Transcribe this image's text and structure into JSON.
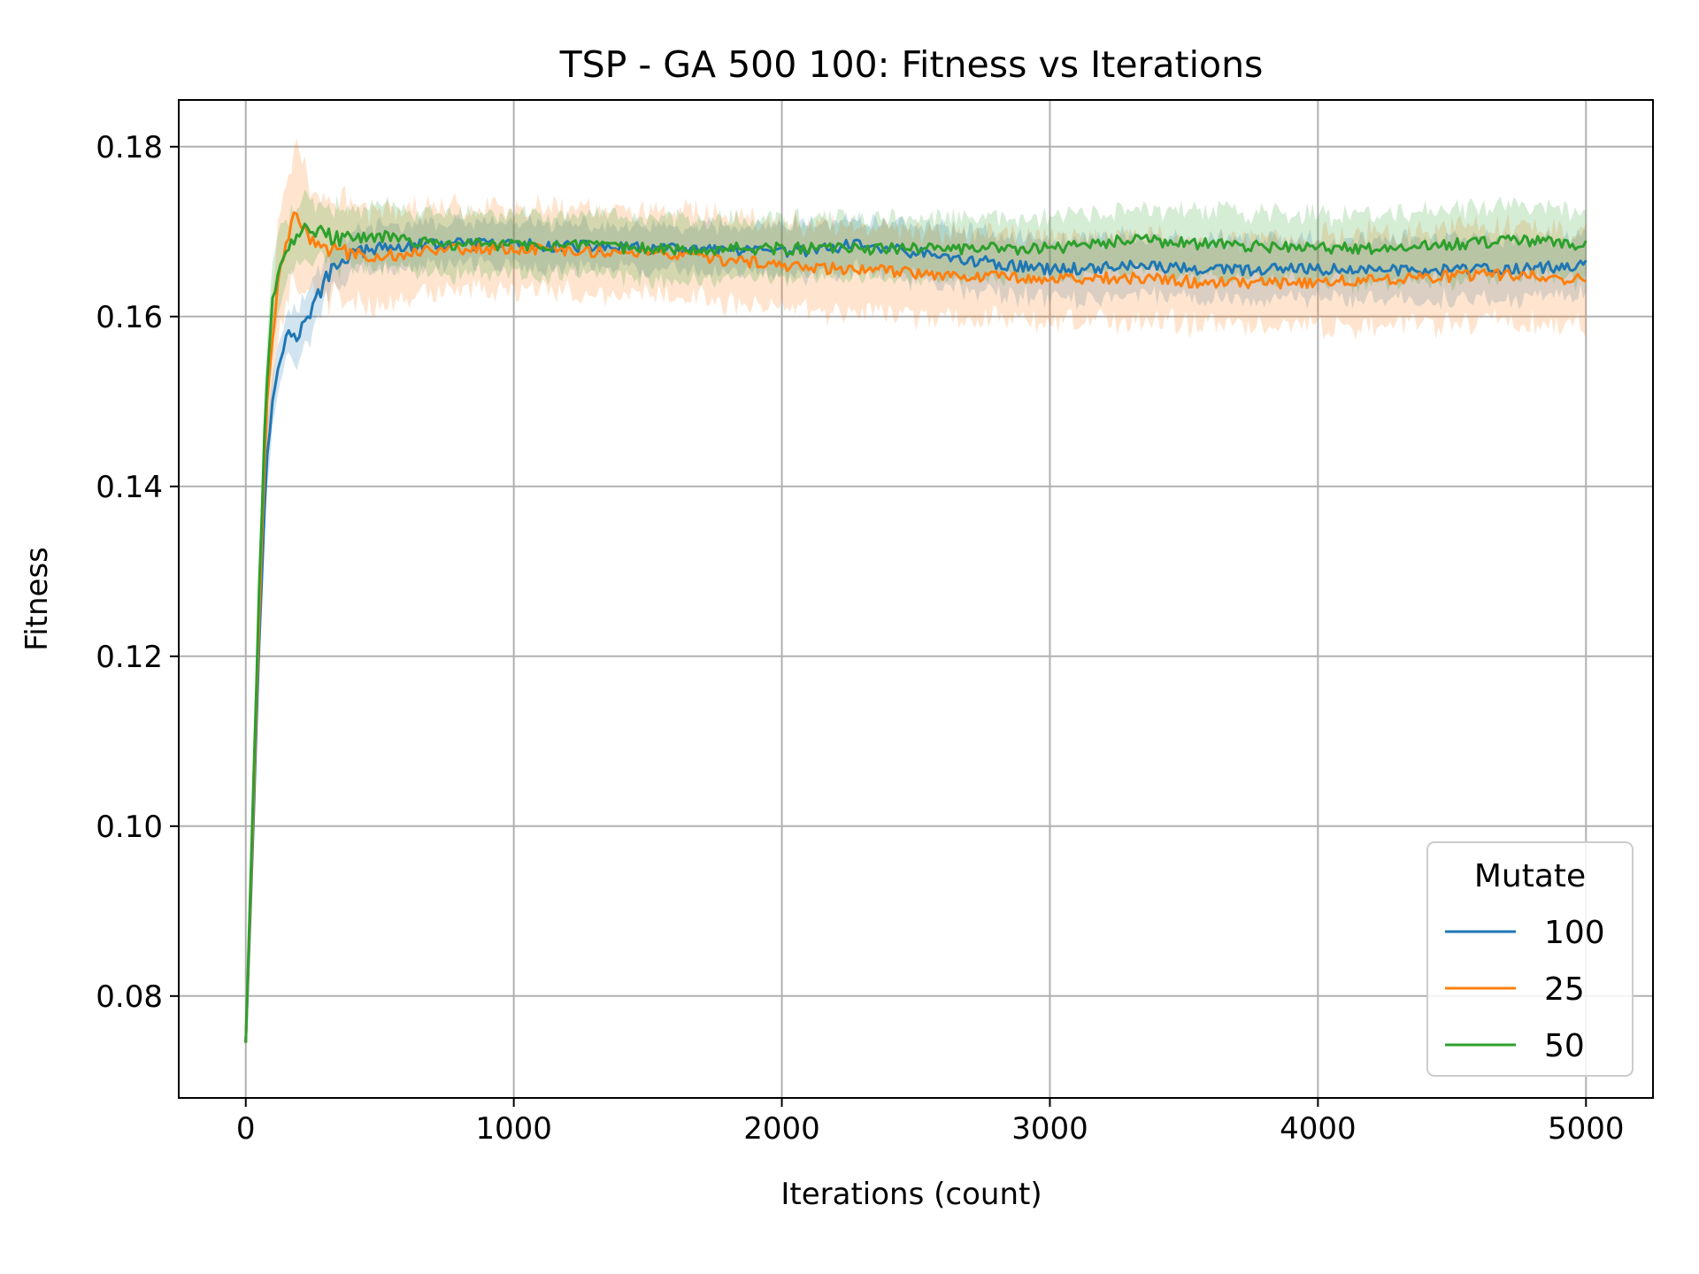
{
  "chart_data": {
    "type": "line",
    "title": "TSP - GA 500 100: Fitness vs Iterations",
    "xlabel": "Iterations (count)",
    "ylabel": "Fitness",
    "xlim": [
      -250,
      5250
    ],
    "ylim": [
      0.068,
      0.1855
    ],
    "x_ticks": [
      0,
      1000,
      2000,
      3000,
      4000,
      5000
    ],
    "x_tick_labels": [
      "0",
      "1000",
      "2000",
      "3000",
      "4000",
      "5000"
    ],
    "y_ticks": [
      0.08,
      0.1,
      0.12,
      0.14,
      0.16,
      0.18
    ],
    "y_tick_labels": [
      "0.08",
      "0.10",
      "0.12",
      "0.14",
      "0.16",
      "0.18"
    ],
    "grid": true,
    "legend": {
      "title": "Mutate",
      "placement": "lower-right"
    },
    "series": [
      {
        "name": "100",
        "color": "#1f77b4",
        "x": [
          0,
          25,
          50,
          75,
          100,
          125,
          150,
          175,
          200,
          250,
          300,
          350,
          400,
          500,
          700,
          1000,
          1500,
          2000,
          2300,
          2600,
          3000,
          3300,
          3600,
          4000,
          4300,
          4700,
          5000
        ],
        "mean": [
          0.0745,
          0.097,
          0.121,
          0.142,
          0.15,
          0.155,
          0.158,
          0.1575,
          0.158,
          0.161,
          0.1645,
          0.1665,
          0.1675,
          0.168,
          0.1685,
          0.1685,
          0.168,
          0.1675,
          0.1685,
          0.167,
          0.1655,
          0.166,
          0.1655,
          0.1655,
          0.1655,
          0.1655,
          0.166
        ],
        "ci": [
          0.0005,
          0.002,
          0.003,
          0.003,
          0.0035,
          0.0035,
          0.003,
          0.003,
          0.003,
          0.003,
          0.0028,
          0.0025,
          0.0025,
          0.0025,
          0.0025,
          0.0025,
          0.0025,
          0.003,
          0.003,
          0.0035,
          0.0035,
          0.0035,
          0.0035,
          0.0035,
          0.0035,
          0.0035,
          0.0035
        ]
      },
      {
        "name": "25",
        "color": "#ff7f0e",
        "x": [
          0,
          25,
          50,
          75,
          100,
          125,
          150,
          175,
          200,
          250,
          300,
          400,
          500,
          700,
          1000,
          1500,
          2000,
          2300,
          2600,
          3000,
          3300,
          3600,
          4000,
          4300,
          4700,
          5000
        ],
        "mean": [
          0.0745,
          0.099,
          0.125,
          0.148,
          0.158,
          0.165,
          0.169,
          0.1715,
          0.1715,
          0.1685,
          0.168,
          0.1675,
          0.167,
          0.168,
          0.168,
          0.1675,
          0.166,
          0.1655,
          0.165,
          0.1645,
          0.1645,
          0.164,
          0.164,
          0.1645,
          0.165,
          0.1643
        ],
        "ci": [
          0.0005,
          0.003,
          0.004,
          0.004,
          0.005,
          0.006,
          0.007,
          0.0075,
          0.007,
          0.006,
          0.006,
          0.0055,
          0.0055,
          0.005,
          0.005,
          0.005,
          0.005,
          0.005,
          0.005,
          0.005,
          0.005,
          0.005,
          0.0055,
          0.0055,
          0.0055,
          0.0055
        ]
      },
      {
        "name": "50",
        "color": "#2ca02c",
        "x": [
          0,
          25,
          50,
          75,
          100,
          125,
          150,
          200,
          250,
          300,
          400,
          500,
          700,
          1000,
          1500,
          2000,
          2300,
          2600,
          3000,
          3300,
          3600,
          4000,
          4300,
          4700,
          5000
        ],
        "mean": [
          0.0745,
          0.101,
          0.128,
          0.15,
          0.162,
          0.1665,
          0.168,
          0.17,
          0.1705,
          0.1695,
          0.169,
          0.1695,
          0.1685,
          0.1685,
          0.168,
          0.168,
          0.168,
          0.168,
          0.168,
          0.169,
          0.1685,
          0.168,
          0.168,
          0.169,
          0.1685
        ],
        "ci": [
          0.0005,
          0.003,
          0.004,
          0.004,
          0.004,
          0.004,
          0.0035,
          0.0035,
          0.0035,
          0.0035,
          0.0035,
          0.0035,
          0.0035,
          0.0035,
          0.0035,
          0.0035,
          0.0035,
          0.0035,
          0.0035,
          0.0035,
          0.004,
          0.004,
          0.004,
          0.004,
          0.004
        ]
      }
    ]
  }
}
